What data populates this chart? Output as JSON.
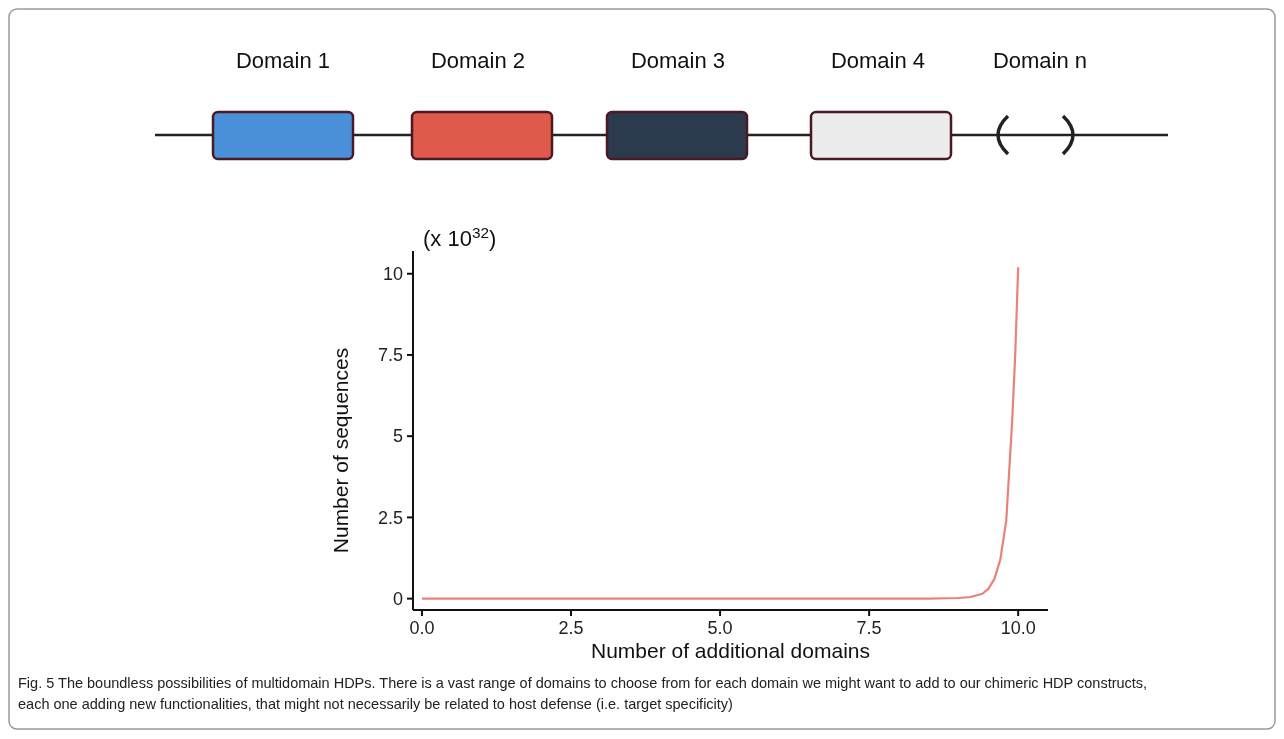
{
  "chart_data": {
    "type": "line",
    "xlabel": "Number of additional domains",
    "ylabel": "Number of sequences",
    "x": [
      0,
      1,
      2,
      3,
      4,
      5,
      6,
      7,
      8,
      8.5,
      9,
      9.2,
      9.4,
      9.5,
      9.6,
      9.7,
      9.8,
      9.9,
      9.95,
      10
    ],
    "series": [
      {
        "color": "#e8837a",
        "values": [
          0,
          0,
          0,
          0,
          0,
          0,
          0,
          0,
          0,
          0,
          0.02,
          0.05,
          0.15,
          0.3,
          0.6,
          1.2,
          2.4,
          5.5,
          7.5,
          10.2
        ]
      }
    ],
    "xlim": [
      -0.15,
      10.5
    ],
    "ylim": [
      -0.35,
      10.7
    ],
    "xticks": [
      {
        "value": 0,
        "label": "0.0"
      },
      2.5,
      {
        "value": 5,
        "label": "5.0"
      },
      7.5,
      {
        "value": 10,
        "label": "10.0"
      }
    ],
    "yticks": [
      0,
      2.5,
      5,
      7.5,
      10
    ],
    "annotations": [
      "(x 10$^{32}$)",
      "Domain 1",
      "Domain 2",
      "Domain 3",
      "Domain 4",
      "Domain n",
      "Fig. 5 The boundless possibilities of multidomain HDPs. There is a vast range of domains to choose from for each domain we might want to add to our chimeric HDP constructs, each one adding new functionalities, that might not necessarily be related to host defense (i.e. target specificity)"
    ]
  }
}
